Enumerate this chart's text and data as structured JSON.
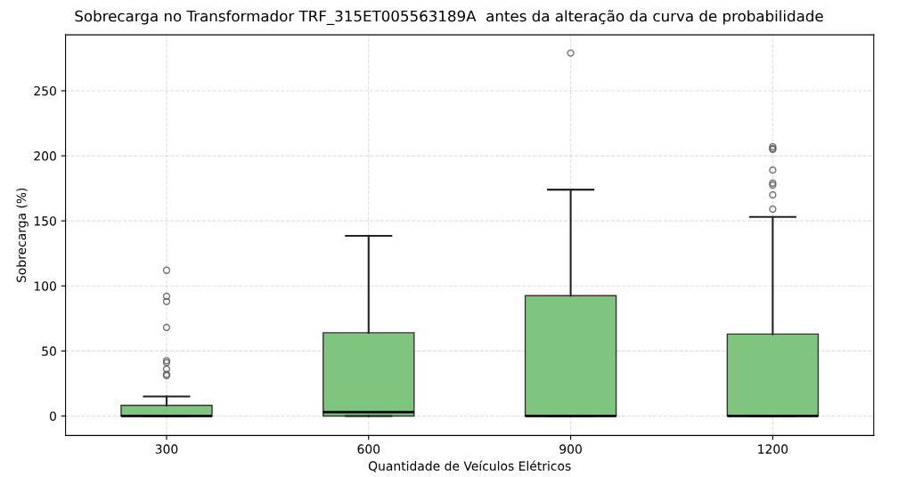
{
  "chart_data": {
    "type": "box",
    "title": "Sobrecarga no Transformador TRF_315ET005563189A  antes da alteração da curva de probabilidade",
    "xlabel": "Quantidade de Veículos Elétricos",
    "ylabel": "Sobrecarga (%)",
    "categories": [
      "300",
      "600",
      "900",
      "1200"
    ],
    "color": "#7fc47f",
    "boxes": [
      {
        "low": 0,
        "q1": 0,
        "median": 0,
        "q3": 8.2,
        "high": 15,
        "outliers": [
          112,
          92,
          88,
          68,
          42.5,
          41,
          36,
          32,
          31
        ]
      },
      {
        "low": 0,
        "q1": 0,
        "median": 3,
        "q3": 64,
        "high": 138.5
      },
      {
        "low": 0,
        "q1": 0,
        "median": 0,
        "q3": 92.5,
        "high": 174,
        "outliers": [
          279
        ]
      },
      {
        "low": 0,
        "q1": 0,
        "median": 0,
        "q3": 63,
        "high": 153,
        "outliers": [
          159,
          170,
          177.5,
          179,
          189,
          205,
          205.5,
          207
        ]
      }
    ],
    "ylim": [
      -15,
      293
    ],
    "yticks": [
      0,
      50,
      100,
      150,
      200,
      250
    ],
    "grid": true
  }
}
